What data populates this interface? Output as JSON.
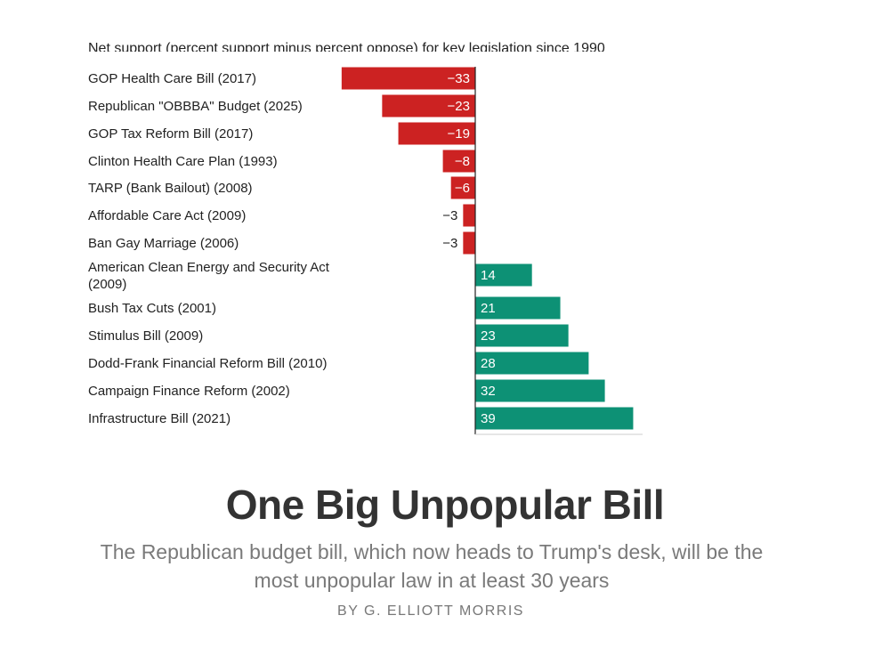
{
  "article": {
    "headline": "One Big Unpopular Bill",
    "subtitle": "The Republican budget bill, which now heads to Trump's desk, will be the most unpopular law in at least 30 years",
    "byline": "BY G. ELLIOTT MORRIS"
  },
  "chart_data": {
    "type": "bar",
    "orientation": "horizontal",
    "title": "Net support (percent support minus percent oppose) for key legislation since 1990",
    "categories": [
      "GOP Health Care Bill (2017)",
      "Republican \"OBBBA\" Budget (2025)",
      "GOP Tax Reform Bill (2017)",
      "Clinton Health Care Plan (1993)",
      "TARP (Bank Bailout) (2008)",
      "Affordable Care Act (2009)",
      "Ban Gay Marriage (2006)",
      "American Clean Energy and Security Act (2009)",
      "Bush Tax Cuts (2001)",
      "Stimulus Bill (2009)",
      "Dodd-Frank Financial Reform Bill (2010)",
      "Campaign Finance Reform (2002)",
      "Infrastructure Bill (2021)"
    ],
    "values": [
      -33,
      -23,
      -19,
      -8,
      -6,
      -3,
      -3,
      14,
      21,
      23,
      28,
      32,
      39
    ],
    "value_labels": [
      "−33",
      "−23",
      "−19",
      "−8",
      "−6",
      "−3",
      "−3",
      "14",
      "21",
      "23",
      "28",
      "32",
      "39"
    ],
    "colors": {
      "negative": "#cc2222",
      "positive": "#0d9175",
      "axis": "#222222"
    },
    "xlim": [
      -33,
      39
    ]
  }
}
